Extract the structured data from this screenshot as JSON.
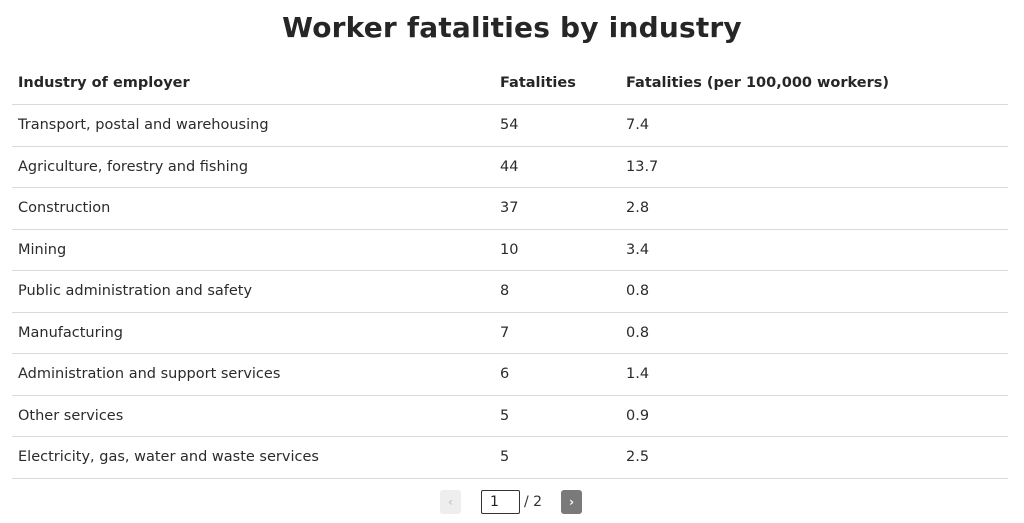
{
  "chart_data": {
    "type": "table",
    "title": "Worker fatalities by industry",
    "columns": [
      "Industry of employer",
      "Fatalities",
      "Fatalities (per 100,000 workers)"
    ],
    "rows": [
      [
        "Transport, postal and warehousing",
        "54",
        "7.4"
      ],
      [
        "Agriculture, forestry and fishing",
        "44",
        "13.7"
      ],
      [
        "Construction",
        "37",
        "2.8"
      ],
      [
        "Mining",
        "10",
        "3.4"
      ],
      [
        "Public administration and safety",
        "8",
        "0.8"
      ],
      [
        "Manufacturing",
        "7",
        "0.8"
      ],
      [
        "Administration and support services",
        "6",
        "1.4"
      ],
      [
        "Other services",
        "5",
        "0.9"
      ],
      [
        "Electricity, gas, water and waste services",
        "5",
        "2.5"
      ]
    ]
  },
  "pagination": {
    "prev_label": "‹",
    "current_page": "1",
    "total_label": "/ 2",
    "next_label": "›"
  }
}
